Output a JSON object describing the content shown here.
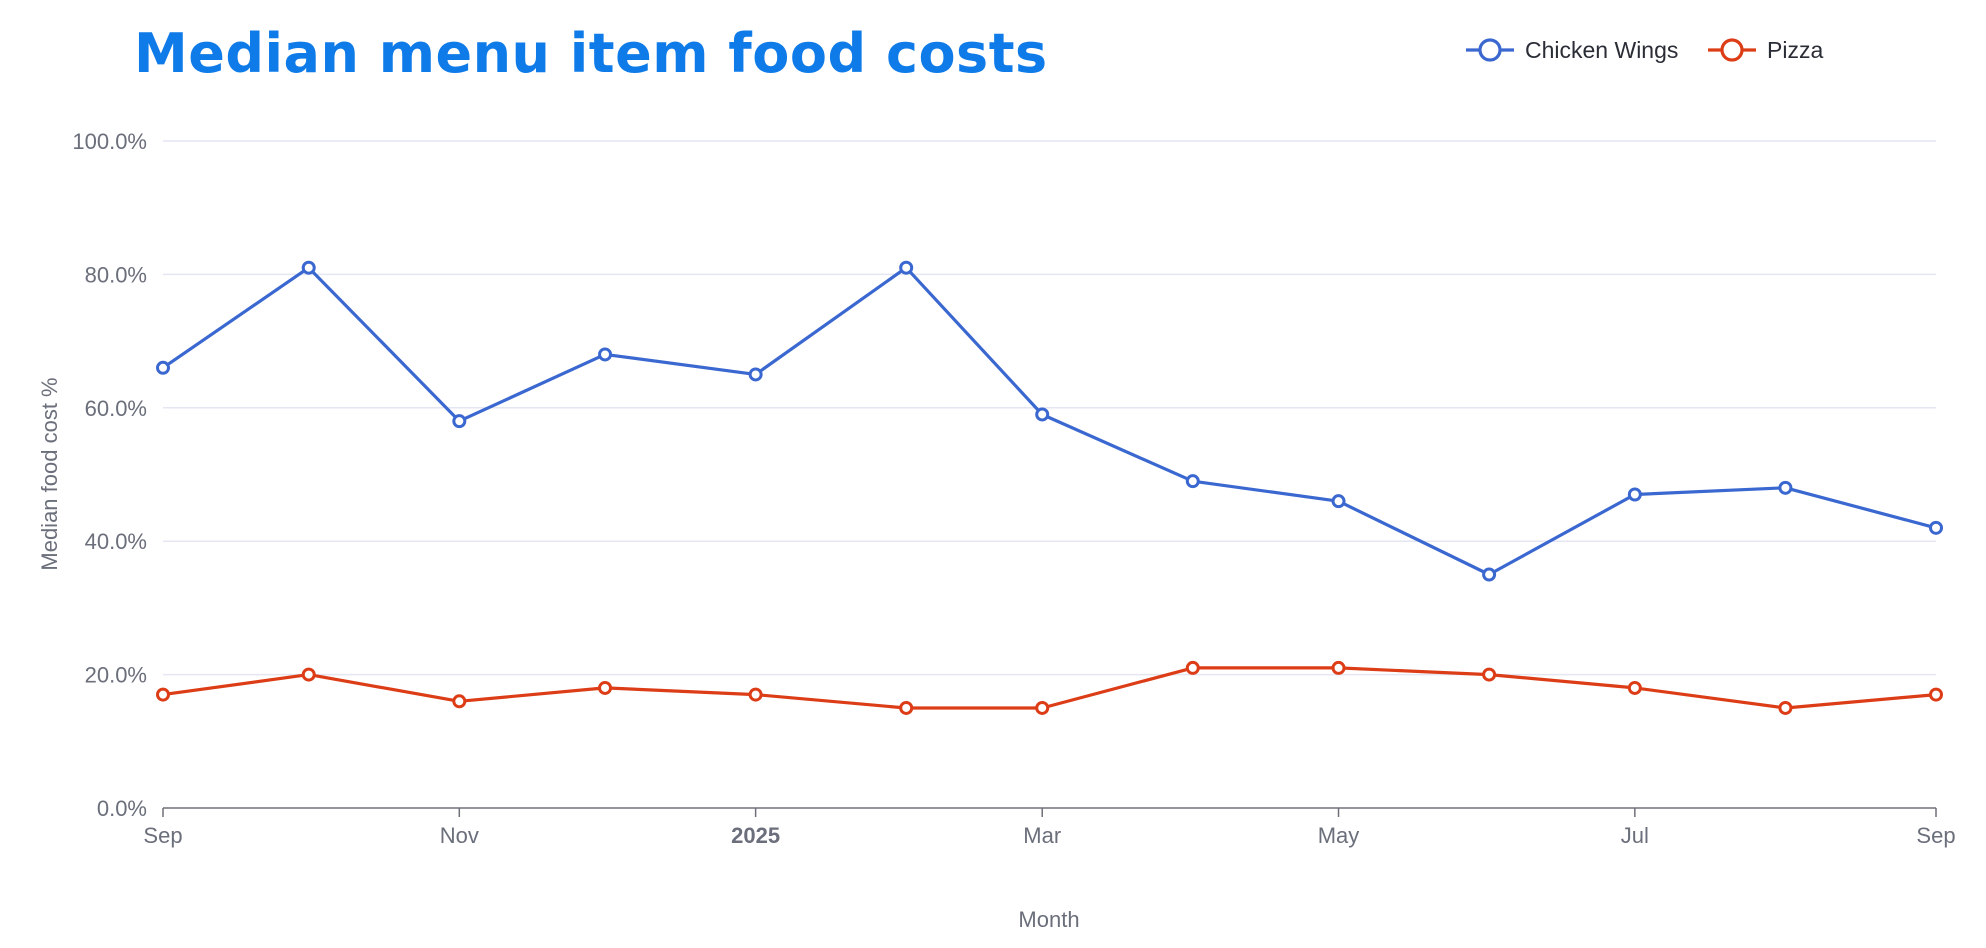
{
  "chart_data": {
    "type": "line",
    "title": "Median menu item food costs",
    "xlabel": "Month",
    "ylabel": "Median food cost %",
    "ylim": [
      0,
      100
    ],
    "yticks": [
      "0.0%",
      "20.0%",
      "40.0%",
      "60.0%",
      "80.0%",
      "100.0%"
    ],
    "xticks": [
      {
        "label": "Sep",
        "date": "2024-09-01",
        "bold": false
      },
      {
        "label": "Nov",
        "date": "2024-11-01",
        "bold": false
      },
      {
        "label": "2025",
        "date": "2025-01-01",
        "bold": true
      },
      {
        "label": "Mar",
        "date": "2025-03-01",
        "bold": false
      },
      {
        "label": "May",
        "date": "2025-05-01",
        "bold": false
      },
      {
        "label": "Jul",
        "date": "2025-07-01",
        "bold": false
      },
      {
        "label": "Sep",
        "date": "2025-09-01",
        "bold": false
      }
    ],
    "x": [
      "2024-09-01",
      "2024-10-01",
      "2024-11-01",
      "2024-12-01",
      "2025-01-01",
      "2025-02-01",
      "2025-03-01",
      "2025-04-01",
      "2025-05-01",
      "2025-06-01",
      "2025-07-01",
      "2025-08-01",
      "2025-09-01"
    ],
    "grid": true,
    "legend_position": "top-right",
    "series": [
      {
        "name": "Chicken Wings",
        "color": "#3a68d0",
        "values": [
          66,
          81,
          58,
          68,
          65,
          81,
          59,
          49,
          46,
          35,
          47,
          48,
          42
        ]
      },
      {
        "name": "Pizza",
        "color": "#dc3d17",
        "values": [
          17,
          20,
          16,
          18,
          17,
          15,
          15,
          21,
          21,
          20,
          18,
          15,
          17
        ]
      }
    ]
  }
}
